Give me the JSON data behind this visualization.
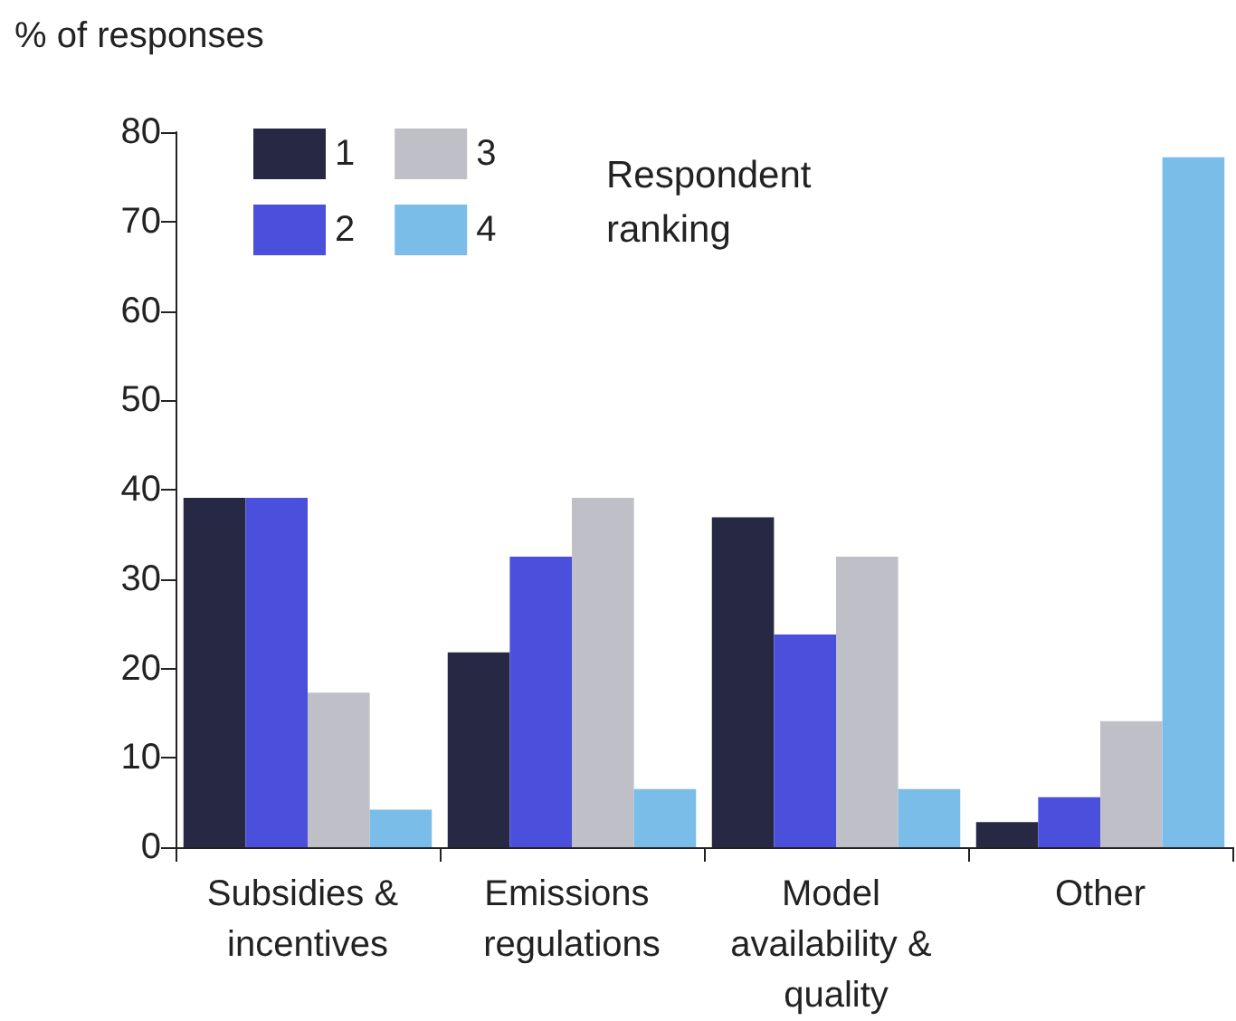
{
  "chart_data": {
    "type": "bar",
    "ylabel": "% of responses",
    "legend_title": "Respondent ranking",
    "categories": [
      "Subsidies & incentives",
      "Emissions regulations",
      "Model availability & quality",
      "Other"
    ],
    "series": [
      {
        "name": "1",
        "color": "#272944",
        "values": [
          39.1,
          21.8,
          36.9,
          2.8
        ]
      },
      {
        "name": "2",
        "color": "#4a4fdc",
        "values": [
          39.1,
          32.5,
          23.8,
          5.6
        ]
      },
      {
        "name": "3",
        "color": "#bfbfc7",
        "values": [
          17.3,
          39.1,
          32.5,
          14.1
        ]
      },
      {
        "name": "4",
        "color": "#7bbde9",
        "values": [
          4.2,
          6.5,
          6.5,
          77.2
        ]
      }
    ],
    "ylim": [
      0,
      80
    ],
    "yticks": [
      0,
      10,
      20,
      30,
      40,
      50,
      60,
      70,
      80
    ],
    "grid": false,
    "legend": "top left"
  }
}
